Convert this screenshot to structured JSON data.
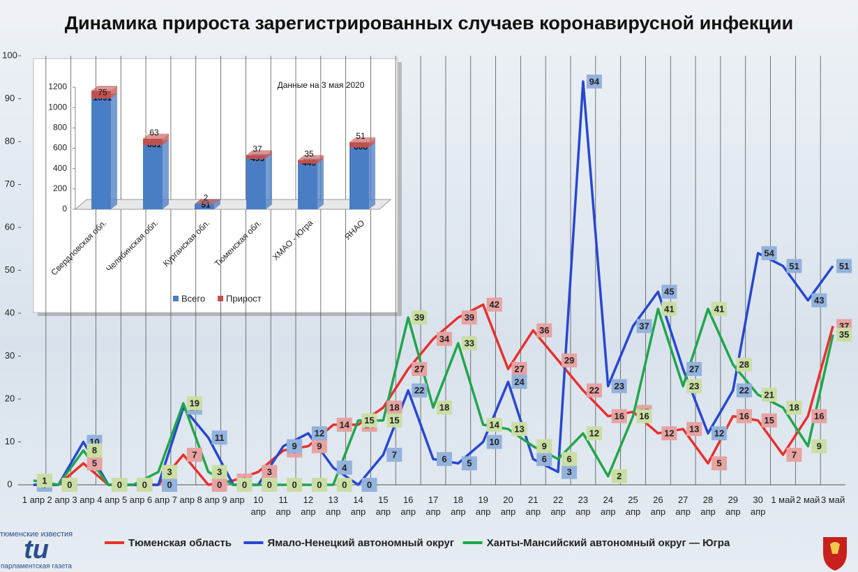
{
  "chart_data": [
    {
      "type": "line",
      "title": "Динамика прироста зарегистрированных случаев коронавирусной инфекции",
      "categories": [
        "1 апр",
        "2 апр",
        "3 апр",
        "4 апр",
        "5 апр",
        "6 апр",
        "7 апр",
        "8 апр",
        "9 апр",
        "10 апр",
        "11 апр",
        "12 апр",
        "13 апр",
        "14 апр",
        "15 апр",
        "16 апр",
        "17 апр",
        "18 апр",
        "19 апр",
        "20 апр",
        "21 апр",
        "22 апр",
        "23 апр",
        "24 апр",
        "25 апр",
        "26 апр",
        "27 апр",
        "28 апр",
        "29 апр",
        "30 апр",
        "1 май",
        "2 май",
        "3 май"
      ],
      "ylim": [
        0,
        100
      ],
      "yticks": [
        0,
        10,
        20,
        30,
        40,
        50,
        60,
        70,
        80,
        90,
        100
      ],
      "legend": "bottom",
      "series": [
        {
          "name": "Тюменская область",
          "color": "#e8302c",
          "label_color": "#e6a3a1",
          "values": [
            0,
            0,
            5,
            0,
            0,
            0,
            7,
            0,
            1,
            3,
            8,
            9,
            14,
            14,
            18,
            27,
            34,
            39,
            42,
            27,
            36,
            29,
            22,
            16,
            17,
            12,
            13,
            5,
            16,
            15,
            7,
            16,
            37
          ]
        },
        {
          "name": "Ямало-Ненецкий автономный округ",
          "color": "#2747d0",
          "label_color": "#93b2dc",
          "values": [
            0,
            0,
            10,
            0,
            0,
            0,
            18,
            11,
            0,
            0,
            9,
            12,
            4,
            0,
            7,
            22,
            6,
            5,
            10,
            24,
            6,
            3,
            94,
            23,
            37,
            45,
            27,
            12,
            22,
            54,
            51,
            43,
            51
          ]
        },
        {
          "name": "Ханты-Мансийский автономный округ — Югра",
          "color": "#1fa64a",
          "label_color": "#cadea4",
          "values": [
            1,
            0,
            8,
            0,
            0,
            3,
            19,
            3,
            0,
            0,
            0,
            0,
            0,
            15,
            15,
            39,
            18,
            33,
            14,
            13,
            9,
            6,
            12,
            2,
            16,
            41,
            23,
            41,
            28,
            21,
            18,
            9,
            35
          ]
        }
      ]
    },
    {
      "type": "bar",
      "annotation": "Данные на 3 мая 2020",
      "categories": [
        "Свердловская обл.",
        "Челябинская обл.",
        "Курганская обл.",
        "Тюменская обл.",
        "ХМАО - Югра",
        "ЯНАО"
      ],
      "ylim": [
        0,
        1200
      ],
      "yticks": [
        0,
        200,
        400,
        600,
        800,
        1000,
        1200
      ],
      "stacked": true,
      "legend": "bottom",
      "series": [
        {
          "name": "Всего",
          "color": "#4a7ec4",
          "values": [
            1091,
            631,
            51,
            495,
            449,
            608
          ]
        },
        {
          "name": "Прирост",
          "color": "#c0504d",
          "values": [
            75,
            63,
            2,
            37,
            35,
            51
          ]
        }
      ]
    }
  ],
  "logo": {
    "top": "тюменские известия",
    "mark": "tu",
    "bottom": "парламентская газета"
  }
}
